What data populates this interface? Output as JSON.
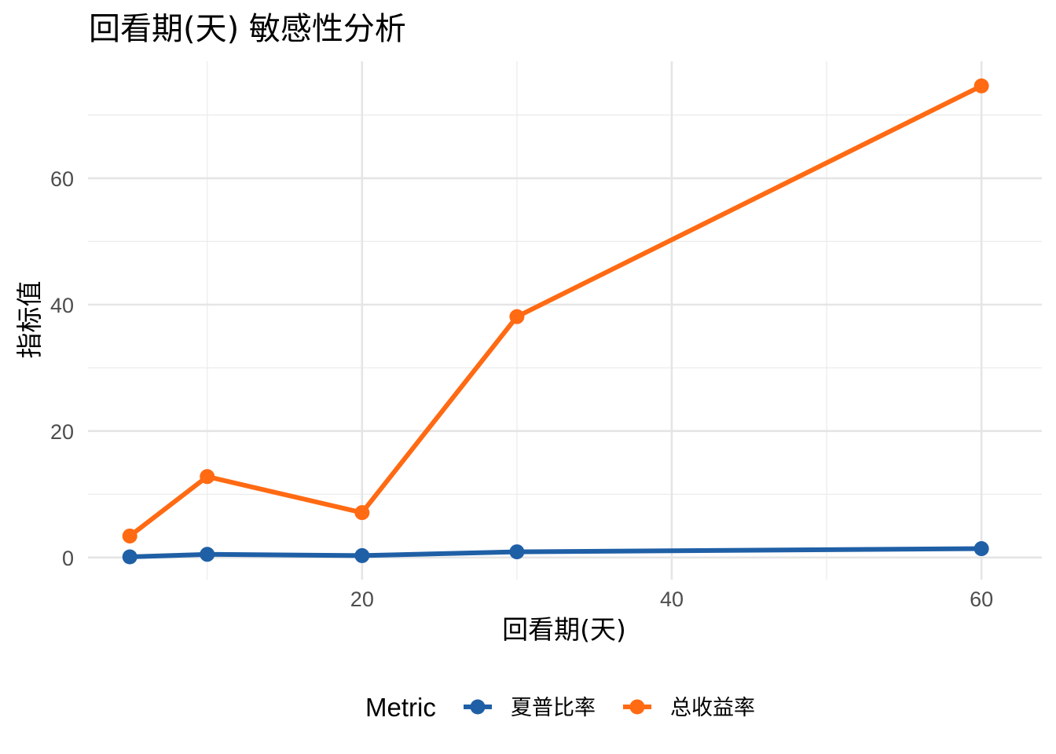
{
  "chart_data": {
    "type": "line",
    "title": "回看期(天) 敏感性分析",
    "xlabel": "回看期(天)",
    "ylabel": "指标值",
    "x": [
      5,
      10,
      20,
      30,
      60
    ],
    "xlim": [
      2.3,
      63.9
    ],
    "ylim": [
      -3.5,
      78.5
    ],
    "x_ticks": [
      20,
      40,
      60
    ],
    "y_ticks": [
      0,
      20,
      40,
      60
    ],
    "grid": true,
    "legend": {
      "title": "Metric",
      "position": "bottom"
    },
    "series": [
      {
        "name": "夏普比率",
        "color": "#1f5fa6",
        "values": [
          0.1,
          0.5,
          0.3,
          0.9,
          1.4
        ]
      },
      {
        "name": "总收益率",
        "color": "#ff6a13",
        "values": [
          3.4,
          12.8,
          7.1,
          38.1,
          74.6
        ]
      }
    ]
  }
}
